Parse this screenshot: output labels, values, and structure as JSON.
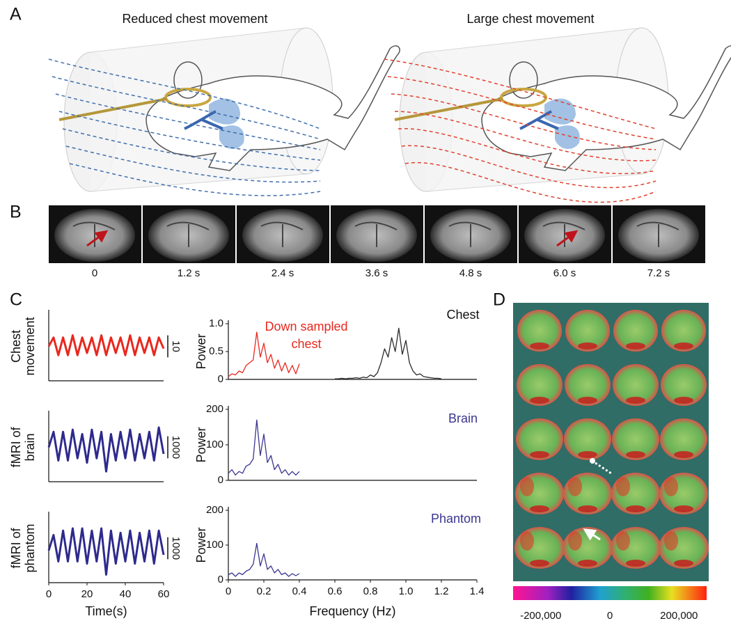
{
  "panels": [
    "A",
    "B",
    "C",
    "D"
  ],
  "panel_a": {
    "titles": [
      "Reduced chest movement",
      "Large chest movement"
    ]
  },
  "panel_b": {
    "time_labels": [
      "0",
      "1.2 s",
      "2.4 s",
      "3.6 s",
      "4.8 s",
      "6.0 s",
      "7.2 s"
    ]
  },
  "chart_data": [
    {
      "type": "line",
      "ylabel": [
        "Chest",
        "movement"
      ],
      "xlim": [
        0,
        60
      ],
      "ylim": [
        0,
        30
      ],
      "scale_bar": 10,
      "series": [
        {
          "color": "#e8281e",
          "x": [
            0,
            2.5,
            5,
            7.5,
            10,
            12.5,
            15,
            17.5,
            20,
            22.5,
            25,
            27.5,
            30,
            32.5,
            35,
            37.5,
            40,
            42.5,
            45,
            47.5,
            50,
            52.5,
            55,
            57.5,
            60
          ],
          "values": [
            15,
            19,
            11,
            19,
            11,
            20,
            11,
            19,
            12,
            19,
            11,
            20,
            11,
            19,
            12,
            19,
            11,
            20,
            11,
            19,
            12,
            19,
            11,
            19,
            14
          ]
        }
      ]
    },
    {
      "type": "line",
      "ylabel": [
        "fMRI of",
        "brain"
      ],
      "xlim": [
        0,
        60
      ],
      "ylim": [
        0,
        3000
      ],
      "scale_bar": 1000,
      "series": [
        {
          "color": "#2e2a8c",
          "x": [
            0,
            2.5,
            5,
            7.5,
            10,
            12.5,
            15,
            17.5,
            20,
            22.5,
            25,
            27.5,
            30,
            32.5,
            35,
            37.5,
            40,
            42.5,
            45,
            47.5,
            50,
            52.5,
            55,
            57.5,
            60
          ],
          "values": [
            1500,
            2200,
            900,
            2200,
            900,
            2300,
            1000,
            2100,
            800,
            2300,
            1000,
            2200,
            400,
            2100,
            900,
            2200,
            1000,
            2300,
            900,
            2100,
            1000,
            2200,
            900,
            2400,
            1200
          ]
        }
      ]
    },
    {
      "type": "line",
      "ylabel": [
        "fMRI of",
        "phantom"
      ],
      "xlim": [
        0,
        60
      ],
      "ylim": [
        0,
        3000
      ],
      "scale_bar": 1000,
      "xticks": [
        0,
        20,
        40,
        60
      ],
      "xlabel": "Time(s)",
      "series": [
        {
          "color": "#2e2a8c",
          "x": [
            0,
            2.5,
            5,
            7.5,
            10,
            12.5,
            15,
            17.5,
            20,
            22.5,
            25,
            27.5,
            30,
            32.5,
            35,
            37.5,
            40,
            42.5,
            45,
            47.5,
            50,
            52.5,
            55,
            57.5,
            60
          ],
          "values": [
            1400,
            2100,
            900,
            2300,
            900,
            2400,
            900,
            2400,
            800,
            2300,
            900,
            2400,
            300,
            2300,
            800,
            2200,
            900,
            2300,
            800,
            2200,
            900,
            2300,
            800,
            2300,
            1200
          ]
        }
      ]
    },
    {
      "type": "line",
      "ylabel": "Power",
      "xlim": [
        0,
        1.4
      ],
      "ylim": [
        0,
        1
      ],
      "yticks": [
        0,
        0.5,
        {
          "value": 1,
          "label": "1.0"
        }
      ],
      "annotations": [
        "Down sampled",
        "chest",
        "Chest"
      ],
      "series": [
        {
          "color": "#e8281e",
          "x": [
            0,
            0.02,
            0.04,
            0.06,
            0.08,
            0.1,
            0.12,
            0.14,
            0.16,
            0.18,
            0.2,
            0.22,
            0.24,
            0.26,
            0.28,
            0.3,
            0.32,
            0.34,
            0.36,
            0.38,
            0.4
          ],
          "values": [
            0.05,
            0.1,
            0.08,
            0.15,
            0.12,
            0.25,
            0.3,
            0.35,
            0.85,
            0.4,
            0.65,
            0.3,
            0.45,
            0.2,
            0.35,
            0.15,
            0.3,
            0.12,
            0.25,
            0.1,
            0.28
          ]
        },
        {
          "color": "#2b2b2b",
          "x": [
            0.6,
            0.62,
            0.64,
            0.66,
            0.68,
            0.7,
            0.72,
            0.74,
            0.76,
            0.78,
            0.8,
            0.82,
            0.84,
            0.86,
            0.88,
            0.9,
            0.92,
            0.94,
            0.96,
            0.98,
            1,
            1.02,
            1.04,
            1.06,
            1.08,
            1.1,
            1.12,
            1.14,
            1.16,
            1.18,
            1.2
          ],
          "values": [
            0.01,
            0.01,
            0.02,
            0.01,
            0.02,
            0.02,
            0.03,
            0.02,
            0.04,
            0.03,
            0.08,
            0.05,
            0.12,
            0.3,
            0.55,
            0.4,
            0.75,
            0.5,
            0.92,
            0.45,
            0.7,
            0.3,
            0.15,
            0.08,
            0.1,
            0.05,
            0.04,
            0.03,
            0.02,
            0.02,
            0.01
          ]
        }
      ]
    },
    {
      "type": "line",
      "ylabel": "Power",
      "xlim": [
        0,
        1.4
      ],
      "ylim": [
        0,
        200
      ],
      "yticks": [
        0,
        100,
        200
      ],
      "annotations": [
        "Brain"
      ],
      "series": [
        {
          "color": "#3a3590",
          "x": [
            0,
            0.02,
            0.04,
            0.06,
            0.08,
            0.1,
            0.12,
            0.14,
            0.16,
            0.18,
            0.2,
            0.22,
            0.24,
            0.26,
            0.28,
            0.3,
            0.32,
            0.34,
            0.36,
            0.38,
            0.4
          ],
          "values": [
            20,
            30,
            15,
            25,
            20,
            40,
            45,
            60,
            170,
            70,
            130,
            50,
            70,
            30,
            45,
            20,
            30,
            15,
            25,
            15,
            25
          ]
        }
      ]
    },
    {
      "type": "line",
      "ylabel": "Power",
      "xlim": [
        0,
        1.4
      ],
      "ylim": [
        0,
        200
      ],
      "yticks": [
        0,
        100,
        200
      ],
      "xticks": [
        0,
        0.2,
        0.4,
        0.6,
        0.8,
        {
          "value": 1,
          "label": "1.0"
        },
        1.2,
        1.4
      ],
      "xlabel": "Frequency (Hz)",
      "annotations": [
        "Phantom"
      ],
      "series": [
        {
          "color": "#3a3590",
          "x": [
            0,
            0.02,
            0.04,
            0.06,
            0.08,
            0.1,
            0.12,
            0.14,
            0.16,
            0.18,
            0.2,
            0.22,
            0.24,
            0.26,
            0.28,
            0.3,
            0.32,
            0.34,
            0.36,
            0.38,
            0.4
          ],
          "values": [
            15,
            20,
            10,
            20,
            15,
            25,
            30,
            45,
            105,
            40,
            75,
            30,
            40,
            20,
            30,
            15,
            20,
            10,
            18,
            12,
            18
          ]
        }
      ]
    }
  ],
  "colorbar": {
    "lim": [
      -280000,
      280000
    ],
    "ticks": [
      {
        "value": -200000,
        "label": "-200,000"
      },
      0,
      {
        "value": 200000,
        "label": "200,000"
      }
    ]
  }
}
